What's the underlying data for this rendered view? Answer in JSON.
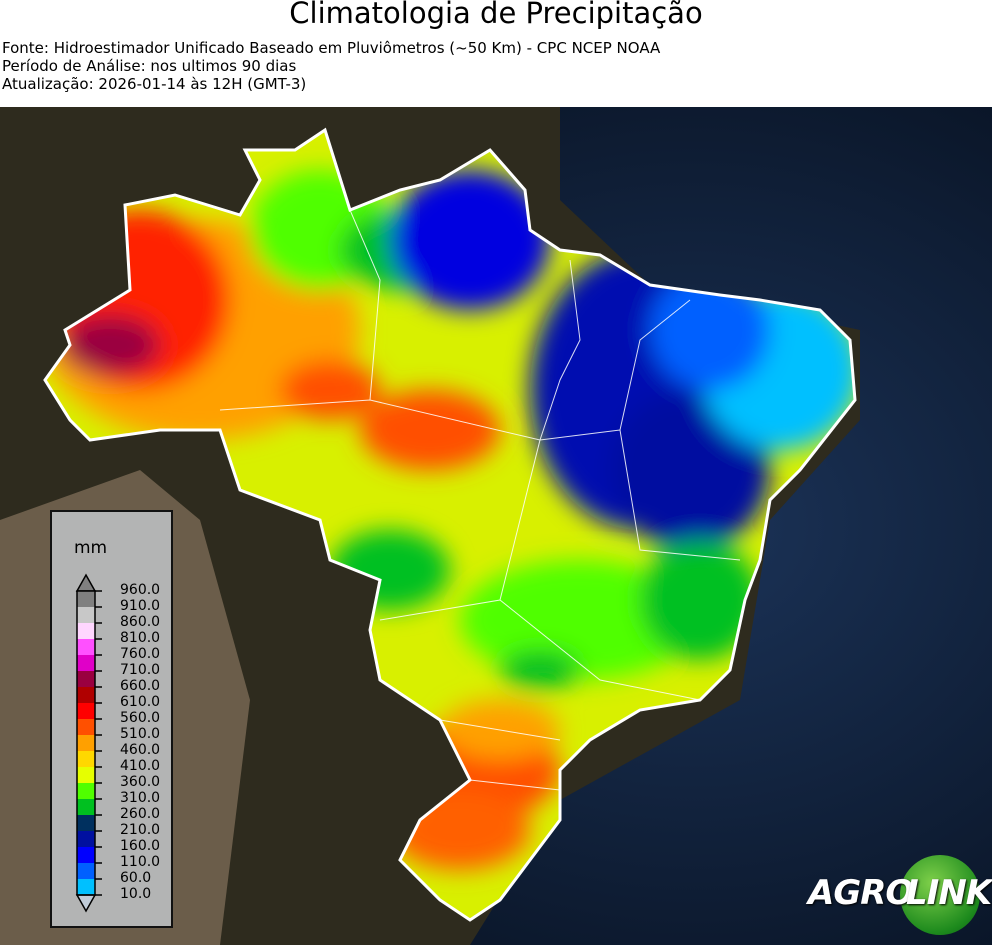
{
  "header": {
    "title": "Climatologia de Precipitação",
    "source": "Fonte: Hidroestimador Unificado Baseado em Pluviômetros (~50 Km) - CPC NCEP NOAA",
    "period": "Período de Análise: nos ultimos 90 dias",
    "updated": "Atualização: 2026-01-14 às 12H (GMT-3)"
  },
  "legend": {
    "unit": "mm",
    "ticks": [
      "960.0",
      "910.0",
      "860.0",
      "810.0",
      "760.0",
      "710.0",
      "660.0",
      "610.0",
      "560.0",
      "510.0",
      "460.0",
      "410.0",
      "360.0",
      "310.0",
      "260.0",
      "210.0",
      "160.0",
      "110.0",
      "60.0",
      "10.0"
    ],
    "colors_top_to_bottom": [
      "#808080",
      "#c8c8c8",
      "#ffd6ff",
      "#ff50ff",
      "#e000c8",
      "#9a0040",
      "#b00000",
      "#ff0000",
      "#ff5000",
      "#ffa000",
      "#ffd800",
      "#e6ff00",
      "#50ff00",
      "#00c020",
      "#00305f",
      "#0010a0",
      "#0000ff",
      "#0060ff",
      "#00c0ff"
    ],
    "over_color": "#808080",
    "under_color": "#c0ccd8"
  },
  "logo": {
    "part1": "AGRO",
    "part2": "LINK"
  }
}
